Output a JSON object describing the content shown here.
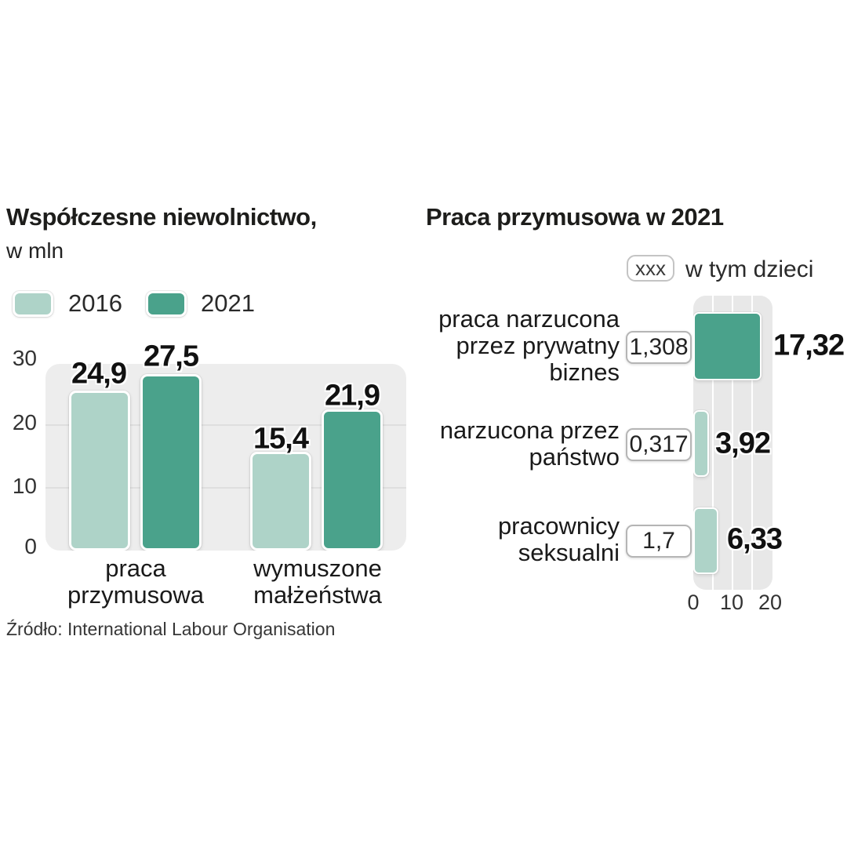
{
  "colors": {
    "series_2016": "#aed3c8",
    "series_2021": "#4aa28b",
    "plot_bg_left": "#ededed",
    "plot_bg_right": "#e8e8e8",
    "gridline_left": "#dfdfdf",
    "text_dark": "#1d1d1b"
  },
  "left_chart": {
    "title": "Współczesne niewolnictwo,",
    "subtitle": "w mln",
    "legend": [
      {
        "label": "2016"
      },
      {
        "label": "2021"
      }
    ],
    "y_ticks": [
      "30",
      "20",
      "10",
      "0"
    ],
    "groups": [
      {
        "label_lines": [
          "praca",
          "przymusowa"
        ],
        "values": [
          {
            "series": "2016",
            "label": "24,9"
          },
          {
            "series": "2021",
            "label": "27,5"
          }
        ]
      },
      {
        "label_lines": [
          "wymuszone",
          "małżeństwa"
        ],
        "values": [
          {
            "series": "2016",
            "label": "15,4"
          },
          {
            "series": "2021",
            "label": "21,9"
          }
        ]
      }
    ],
    "source": "Źródło: International Labour Organisation"
  },
  "right_chart": {
    "title": "Praca przymusowa w 2021",
    "legend_box_label": "xxx",
    "legend_label": "w tym dzieci",
    "x_ticks": [
      "0",
      "10",
      "20"
    ],
    "rows": [
      {
        "label_lines": [
          "praca narzucona",
          "przez prywatny",
          "biznes"
        ],
        "children_label": "1,308",
        "value_label": "17,32"
      },
      {
        "label_lines": [
          "narzucona przez",
          "państwo"
        ],
        "children_label": "0,317",
        "value_label": "3,92"
      },
      {
        "label_lines": [
          "pracownicy",
          "seksualni"
        ],
        "children_label": "1,7",
        "value_label": "6,33"
      }
    ]
  },
  "chart_data": [
    {
      "type": "bar",
      "title": "Współczesne niewolnictwo,",
      "ylabel": "w mln",
      "categories": [
        "praca przymusowa",
        "wymuszone małżeństwa"
      ],
      "series": [
        {
          "name": "2016",
          "values": [
            24.9,
            15.4
          ]
        },
        {
          "name": "2021",
          "values": [
            27.5,
            21.9
          ]
        }
      ],
      "ylim": [
        0,
        30
      ],
      "yticks": [
        0,
        10,
        20,
        30
      ],
      "grid": true,
      "legend_position": "top-left",
      "source": "Źródło: International Labour Organisation"
    },
    {
      "type": "bar",
      "orientation": "horizontal",
      "title": "Praca przymusowa w 2021",
      "categories": [
        "praca narzucona przez prywatny biznes",
        "narzucona przez państwo",
        "pracownicy seksualni"
      ],
      "values": [
        17.32,
        3.92,
        6.33
      ],
      "children_values_label": "w tym dzieci",
      "children_values": [
        1.308,
        0.317,
        1.7
      ],
      "xlim": [
        0,
        20
      ],
      "xticks": [
        0,
        10,
        20
      ],
      "grid": true
    }
  ]
}
